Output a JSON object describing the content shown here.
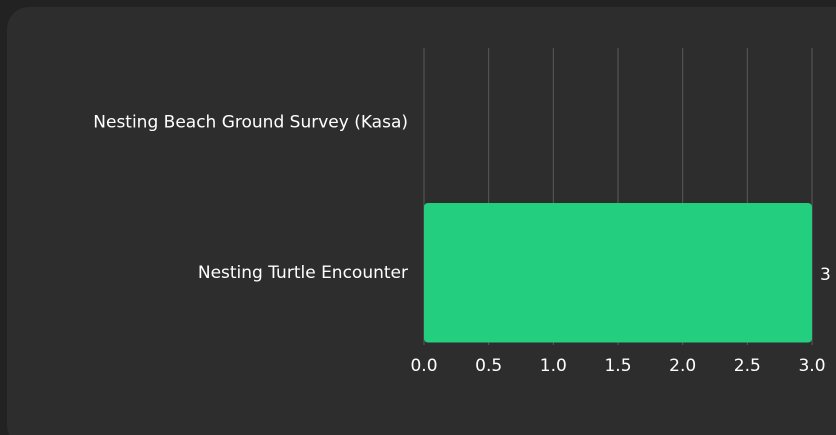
{
  "chart_data": {
    "type": "bar",
    "orientation": "horizontal",
    "categories": [
      "Nesting Beach Ground Survey (Kasa)",
      "Nesting Turtle Encounter"
    ],
    "values": [
      0,
      3
    ],
    "color": "#23ce7f",
    "xlim": [
      0,
      3
    ],
    "xticks": [
      {
        "value": 0,
        "label": "0.0"
      },
      {
        "value": 0.5,
        "label": "0.5"
      },
      {
        "value": 1,
        "label": "1.0"
      },
      {
        "value": 1.5,
        "label": "1.5"
      },
      {
        "value": 2,
        "label": "2.0"
      },
      {
        "value": 2.5,
        "label": "2.5"
      },
      {
        "value": 3,
        "label": "3.0"
      }
    ],
    "grid": true
  }
}
